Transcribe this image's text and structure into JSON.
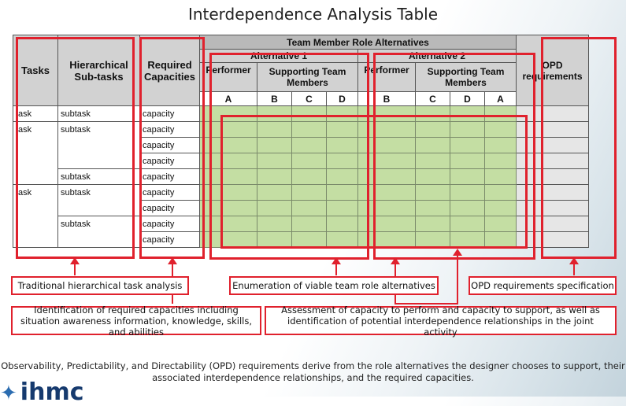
{
  "title": "Interdependence Analysis Table",
  "table": {
    "col_tasks": "Tasks",
    "col_subtasks": "Hierarchical Sub-tasks",
    "col_capacities": "Required Capacities",
    "group_header": "Team Member Role Alternatives",
    "alt1": {
      "title": "Alternative 1",
      "performer": "Performer",
      "supporting": "Supporting Team Members",
      "letters": [
        "A",
        "B",
        "C",
        "D"
      ]
    },
    "alt2": {
      "title": "Alternative 2",
      "performer": "Performer",
      "supporting": "Supporting Team Members",
      "letters": [
        "B",
        "C",
        "D",
        "A"
      ]
    },
    "col_opd": "OPD requirements",
    "rows": [
      {
        "task": "task",
        "subtask": "subtask",
        "capacity": "capacity"
      },
      {
        "task": "task",
        "subtask": "subtask",
        "capacity": "capacity"
      },
      {
        "task": "",
        "subtask": "",
        "capacity": "capacity"
      },
      {
        "task": "",
        "subtask": "",
        "capacity": "capacity"
      },
      {
        "task": "",
        "subtask": "subtask",
        "capacity": "capacity"
      },
      {
        "task": "task",
        "subtask": "subtask",
        "capacity": "capacity"
      },
      {
        "task": "",
        "subtask": "",
        "capacity": "capacity"
      },
      {
        "task": "",
        "subtask": "subtask",
        "capacity": "capacity"
      },
      {
        "task": "",
        "subtask": "",
        "capacity": "capacity"
      }
    ]
  },
  "labels": {
    "traditional": "Traditional hierarchical task analysis",
    "enumeration": "Enumeration of viable team role alternatives",
    "opd_spec": "OPD requirements specification",
    "identification": "Identification of required capacities including situation awareness information, knowledge, skills, and abilities",
    "assessment": "Assessment of capacity to perform and capacity to support, as well as identification of potential interdependence relationships in the joint activity"
  },
  "footer": "Observability, Predictability, and Directability (OPD) requirements derive from the role alternatives the designer chooses to support, their associated interdependence relationships, and the required capacities.",
  "logo": "ihmc",
  "colors": {
    "highlight": "#e0212d",
    "green": "#c4dea3",
    "header_gray": "#d2d2d2"
  }
}
